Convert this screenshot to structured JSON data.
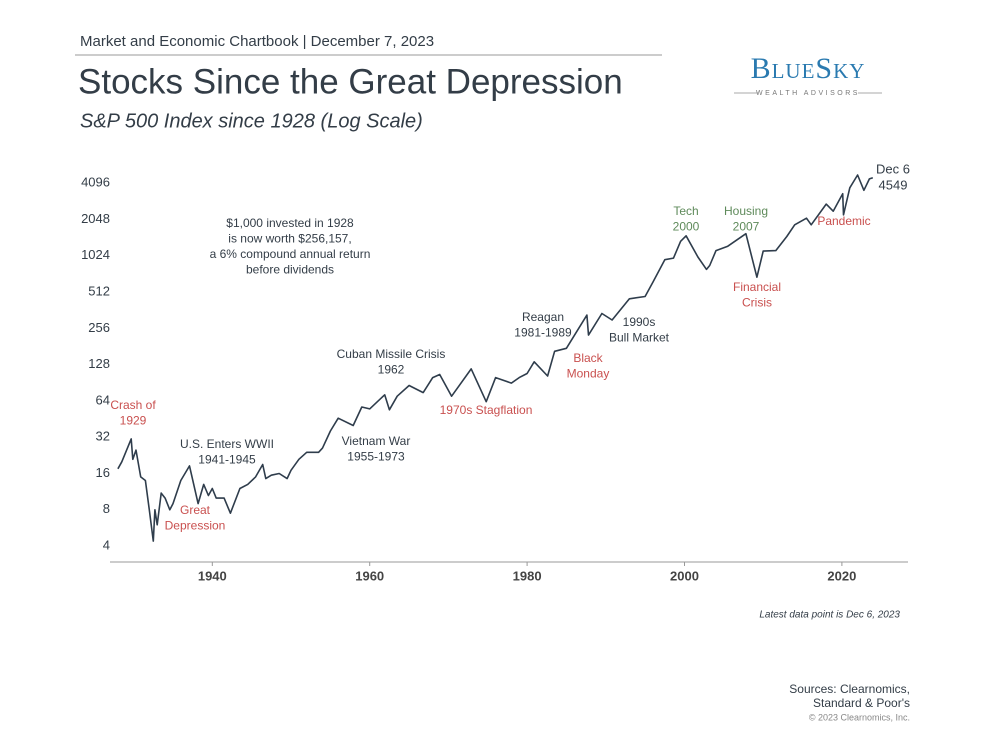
{
  "header": "Market and Economic Chartbook | December 7, 2023",
  "logo": {
    "name": "BlueSky",
    "tagline": "WEALTH ADVISORS"
  },
  "chart_data": {
    "type": "line",
    "title": "Stocks Since the Great Depression",
    "subtitle": "S&P 500 Index since 1928 (Log Scale)",
    "color": "#2f3d4c",
    "log_scale": true,
    "grid": false,
    "x": [
      1928.0,
      1928.5,
      1929.0,
      1929.7,
      1929.9,
      1930.3,
      1930.9,
      1931.5,
      1932.0,
      1932.5,
      1932.7,
      1933.0,
      1933.5,
      1934.0,
      1934.6,
      1935.0,
      1936.0,
      1937.1,
      1938.2,
      1938.9,
      1939.5,
      1940.0,
      1940.5,
      1941.5,
      1942.3,
      1943.5,
      1944.5,
      1945.5,
      1946.4,
      1946.8,
      1947.5,
      1948.5,
      1949.5,
      1950.0,
      1951.0,
      1952.0,
      1953.5,
      1954.0,
      1955.0,
      1956.0,
      1957.9,
      1959.0,
      1960.0,
      1961.9,
      1962.5,
      1963.5,
      1965.0,
      1966.8,
      1968.0,
      1968.9,
      1970.4,
      1972.9,
      1974.8,
      1976.0,
      1978.0,
      1979.0,
      1980.0,
      1980.9,
      1982.6,
      1983.5,
      1985.0,
      1987.6,
      1987.8,
      1989.5,
      1990.8,
      1993.0,
      1995.0,
      1996.0,
      1997.5,
      1998.6,
      1999.5,
      2000.2,
      2001.7,
      2002.8,
      2003.2,
      2004.0,
      2005.5,
      2007.8,
      2009.2,
      2010.0,
      2011.6,
      2013.0,
      2014.0,
      2015.5,
      2016.1,
      2018.0,
      2018.9,
      2020.1,
      2020.2,
      2021.0,
      2021.99,
      2022.8,
      2023.5,
      2023.93
    ],
    "values": [
      17.5,
      20,
      24,
      31,
      21,
      25,
      15,
      14,
      8,
      4.4,
      8,
      6,
      11,
      10,
      8,
      9,
      14,
      18.5,
      9,
      13,
      10.5,
      12,
      10,
      10,
      7.5,
      12,
      13,
      15,
      19,
      14.5,
      15.5,
      16,
      14.5,
      17,
      21,
      24,
      24,
      26,
      36,
      46,
      40,
      57,
      55,
      72,
      54,
      70,
      86,
      75,
      100,
      106,
      70,
      118,
      63,
      100,
      90,
      100,
      108,
      135,
      103,
      165,
      175,
      330,
      225,
      340,
      300,
      450,
      470,
      620,
      950,
      980,
      1350,
      1500,
      1000,
      790,
      850,
      1130,
      1230,
      1560,
      680,
      1120,
      1130,
      1480,
      1850,
      2100,
      1850,
      2750,
      2400,
      3350,
      2240,
      3750,
      4790,
      3580,
      4450,
      4549
    ],
    "xlim": [
      1927,
      2028.4
    ],
    "xticks": [
      1940,
      1960,
      1980,
      2000,
      2020
    ],
    "ylim": [
      2.95,
      5800
    ],
    "yticks": [
      4,
      8,
      16,
      32,
      64,
      128,
      256,
      512,
      1024,
      2048,
      4096
    ],
    "annotations": [
      {
        "lines": [
          "$1,000 invested in 1928",
          "is now worth $256,157,",
          "a 6% compound annual return",
          "before dividends"
        ],
        "color": "#333d47"
      },
      {
        "lines": [
          "Crash of",
          "1929"
        ],
        "color": "#c9504f"
      },
      {
        "lines": [
          "Great",
          "Depression"
        ],
        "color": "#c9504f"
      },
      {
        "lines": [
          "U.S. Enters WWII",
          "1941-1945"
        ],
        "color": "#333d47"
      },
      {
        "lines": [
          "Cuban Missile Crisis",
          "1962"
        ],
        "color": "#333d47"
      },
      {
        "lines": [
          "Vietnam War",
          "1955-1973"
        ],
        "color": "#333d47"
      },
      {
        "lines": [
          "1970s Stagflation"
        ],
        "color": "#c9504f"
      },
      {
        "lines": [
          "Reagan",
          "1981-1989"
        ],
        "color": "#333d47"
      },
      {
        "lines": [
          "Black",
          "Monday"
        ],
        "color": "#c9504f"
      },
      {
        "lines": [
          "1990s",
          "Bull Market"
        ],
        "color": "#333d47"
      },
      {
        "lines": [
          "Tech",
          "2000"
        ],
        "color": "#5e8a5a"
      },
      {
        "lines": [
          "Housing",
          "2007"
        ],
        "color": "#5e8a5a"
      },
      {
        "lines": [
          "Financial",
          "Crisis"
        ],
        "color": "#c9504f"
      },
      {
        "lines": [
          "Pandemic"
        ],
        "color": "#c9504f"
      },
      {
        "lines": [
          "Dec 6",
          "4549"
        ],
        "color": "#333d47"
      }
    ],
    "note": "Latest data point is Dec 6, 2023"
  },
  "footer": {
    "sources": [
      "Sources: Clearnomics,",
      "Standard & Poor's"
    ],
    "copyright": "© 2023 Clearnomics, Inc."
  }
}
